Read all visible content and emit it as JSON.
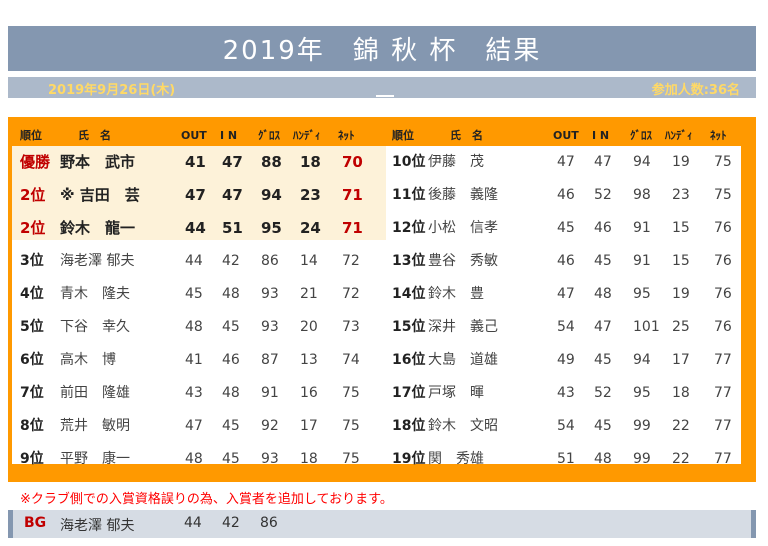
{
  "title": "2019年　錦 秋 杯　結果",
  "date": "2019年9月26日(木)",
  "participants": "参加人数:36名",
  "headers": {
    "rank": "順位",
    "name": "氏　名",
    "out": "OUT",
    "in": "I N",
    "gross": "ｸﾞﾛｽ",
    "handi": "ﾊﾝﾃﾞｨ",
    "net": "ﾈｯﾄ"
  },
  "left": [
    {
      "rank": "優勝",
      "name": "野本　武市",
      "out": "41",
      "in": "47",
      "gross": "88",
      "handi": "18",
      "net": "70"
    },
    {
      "rank": "2位",
      "name": "※ 吉田　芸",
      "out": "47",
      "in": "47",
      "gross": "94",
      "handi": "23",
      "net": "71"
    },
    {
      "rank": "2位",
      "name": "鈴木　龍一",
      "out": "44",
      "in": "51",
      "gross": "95",
      "handi": "24",
      "net": "71"
    },
    {
      "rank": "3位",
      "name": "海老澤 郁夫",
      "out": "44",
      "in": "42",
      "gross": "86",
      "handi": "14",
      "net": "72"
    },
    {
      "rank": "4位",
      "name": "青木　隆夫",
      "out": "45",
      "in": "48",
      "gross": "93",
      "handi": "21",
      "net": "72"
    },
    {
      "rank": "5位",
      "name": "下谷　幸久",
      "out": "48",
      "in": "45",
      "gross": "93",
      "handi": "20",
      "net": "73"
    },
    {
      "rank": "6位",
      "name": "高木　博",
      "out": "41",
      "in": "46",
      "gross": "87",
      "handi": "13",
      "net": "74"
    },
    {
      "rank": "7位",
      "name": "前田　隆雄",
      "out": "43",
      "in": "48",
      "gross": "91",
      "handi": "16",
      "net": "75"
    },
    {
      "rank": "8位",
      "name": "荒井　敏明",
      "out": "47",
      "in": "45",
      "gross": "92",
      "handi": "17",
      "net": "75"
    },
    {
      "rank": "9位",
      "name": "平野　康一",
      "out": "48",
      "in": "45",
      "gross": "93",
      "handi": "18",
      "net": "75"
    }
  ],
  "right": [
    {
      "rank": "10位",
      "name": "伊藤　茂",
      "out": "47",
      "in": "47",
      "gross": "94",
      "handi": "19",
      "net": "75"
    },
    {
      "rank": "11位",
      "name": "後藤　義隆",
      "out": "46",
      "in": "52",
      "gross": "98",
      "handi": "23",
      "net": "75"
    },
    {
      "rank": "12位",
      "name": "小松　信孝",
      "out": "45",
      "in": "46",
      "gross": "91",
      "handi": "15",
      "net": "76"
    },
    {
      "rank": "13位",
      "name": "豊谷　秀敏",
      "out": "46",
      "in": "45",
      "gross": "91",
      "handi": "15",
      "net": "76"
    },
    {
      "rank": "14位",
      "name": "鈴木　豊",
      "out": "47",
      "in": "48",
      "gross": "95",
      "handi": "19",
      "net": "76"
    },
    {
      "rank": "15位",
      "name": "深井　義己",
      "out": "54",
      "in": "47",
      "gross": "101",
      "handi": "25",
      "net": "76"
    },
    {
      "rank": "16位",
      "name": "大島　道雄",
      "out": "49",
      "in": "45",
      "gross": "94",
      "handi": "17",
      "net": "77"
    },
    {
      "rank": "17位",
      "name": "戸塚　暉",
      "out": "43",
      "in": "52",
      "gross": "95",
      "handi": "18",
      "net": "77"
    },
    {
      "rank": "18位",
      "name": "鈴木　文昭",
      "out": "54",
      "in": "45",
      "gross": "99",
      "handi": "22",
      "net": "77"
    },
    {
      "rank": "19位",
      "name": "関　秀雄",
      "out": "51",
      "in": "48",
      "gross": "99",
      "handi": "22",
      "net": "77"
    }
  ],
  "note": "※クラブ側での入賞資格誤りの為、入賞者を追加しております。",
  "bg": {
    "label": "BG",
    "name": "海老澤 郁夫",
    "out": "44",
    "in": "42",
    "gross": "86"
  }
}
